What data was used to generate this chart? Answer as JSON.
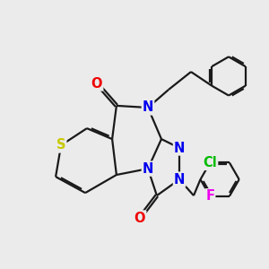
{
  "bg_color": "#ebebeb",
  "bond_color": "#1a1a1a",
  "bond_width": 1.6,
  "dbo": 0.06,
  "atom_colors": {
    "S": "#c8c800",
    "N": "#0000ee",
    "O": "#ee0000",
    "Cl": "#00bb00",
    "F": "#ee00ee",
    "C": "#1a1a1a"
  },
  "fs": 10.5
}
